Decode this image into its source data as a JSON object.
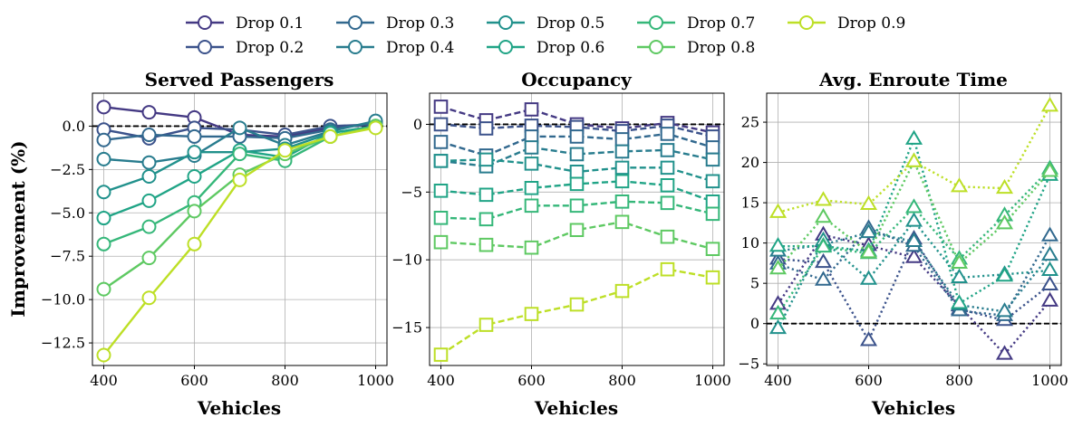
{
  "figure": {
    "ylabel": "Improvement (%)",
    "legend_placement": "top-center"
  },
  "series_styles": [
    {
      "name": "Drop 0.1",
      "color": "#443983"
    },
    {
      "name": "Drop 0.2",
      "color": "#3b528b"
    },
    {
      "name": "Drop 0.3",
      "color": "#31688e"
    },
    {
      "name": "Drop 0.4",
      "color": "#287c8e"
    },
    {
      "name": "Drop 0.5",
      "color": "#21918c"
    },
    {
      "name": "Drop 0.6",
      "color": "#20a486"
    },
    {
      "name": "Drop 0.7",
      "color": "#35b779"
    },
    {
      "name": "Drop 0.8",
      "color": "#5ec962"
    },
    {
      "name": "Drop 0.9",
      "color": "#bddf26"
    }
  ],
  "chart_data": [
    {
      "type": "line",
      "title": "Served Passengers",
      "xlabel": "Vehicles",
      "ylabel": "Improvement (%)",
      "x": [
        400,
        500,
        600,
        700,
        800,
        900,
        1000
      ],
      "xlim": [
        375,
        1025
      ],
      "ylim": [
        -13.8,
        1.9
      ],
      "xticks": [
        400,
        600,
        800,
        1000
      ],
      "yticks": [
        0.0,
        -2.5,
        -5.0,
        -7.5,
        -10.0,
        -12.5
      ],
      "ytick_labels": [
        "0.0",
        "−2.5",
        "−5.0",
        "−7.5",
        "−10.0",
        "−12.5"
      ],
      "grid": true,
      "baseline": 0,
      "marker": "circle",
      "line_style": "solid",
      "series": [
        {
          "name": "Drop 0.1",
          "values": [
            1.1,
            0.8,
            0.5,
            -0.5,
            -0.6,
            -0.1,
            0.1
          ]
        },
        {
          "name": "Drop 0.2",
          "values": [
            -0.2,
            -0.7,
            -0.1,
            -0.2,
            -0.5,
            0.0,
            0.1
          ]
        },
        {
          "name": "Drop 0.3",
          "values": [
            -0.8,
            -0.5,
            -0.6,
            -0.6,
            -0.7,
            -0.2,
            0.2
          ]
        },
        {
          "name": "Drop 0.4",
          "values": [
            -1.9,
            -2.1,
            -1.7,
            -0.1,
            -1.1,
            -0.3,
            0.3
          ]
        },
        {
          "name": "Drop 0.5",
          "values": [
            -3.8,
            -2.9,
            -1.5,
            -1.5,
            -1.3,
            -0.4,
            0.0
          ]
        },
        {
          "name": "Drop 0.6",
          "values": [
            -5.3,
            -4.3,
            -2.9,
            -1.4,
            -1.8,
            -0.4,
            0.0
          ]
        },
        {
          "name": "Drop 0.7",
          "values": [
            -6.8,
            -5.8,
            -4.4,
            -1.6,
            -2.0,
            -0.6,
            0.0
          ]
        },
        {
          "name": "Drop 0.8",
          "values": [
            -9.4,
            -7.6,
            -4.9,
            -2.8,
            -1.6,
            -0.6,
            0.0
          ]
        },
        {
          "name": "Drop 0.9",
          "values": [
            -13.2,
            -9.9,
            -6.8,
            -3.1,
            -1.4,
            -0.6,
            -0.1
          ]
        }
      ]
    },
    {
      "type": "line",
      "title": "Occupancy",
      "xlabel": "Vehicles",
      "ylabel": "",
      "x": [
        400,
        500,
        600,
        700,
        800,
        900,
        1000
      ],
      "xlim": [
        375,
        1025
      ],
      "ylim": [
        -17.8,
        2.3
      ],
      "xticks": [
        400,
        600,
        800,
        1000
      ],
      "yticks": [
        0,
        -5,
        -10,
        -15
      ],
      "ytick_labels": [
        "0",
        "−5",
        "−10",
        "−15"
      ],
      "grid": true,
      "baseline": 0,
      "marker": "square",
      "line_style": "dashed",
      "series": [
        {
          "name": "Drop 0.1",
          "values": [
            1.3,
            0.3,
            1.1,
            0.0,
            -0.3,
            0.1,
            -0.6
          ]
        },
        {
          "name": "Drop 0.2",
          "values": [
            0.0,
            -0.3,
            -0.1,
            -0.2,
            -0.5,
            -0.1,
            -0.9
          ]
        },
        {
          "name": "Drop 0.3",
          "values": [
            -1.3,
            -2.3,
            -0.9,
            -0.9,
            -1.1,
            -0.7,
            -1.7
          ]
        },
        {
          "name": "Drop 0.4",
          "values": [
            -2.7,
            -3.1,
            -1.7,
            -2.2,
            -2.0,
            -1.9,
            -2.6
          ]
        },
        {
          "name": "Drop 0.5",
          "values": [
            -2.7,
            -2.6,
            -2.9,
            -3.5,
            -3.2,
            -3.2,
            -4.2
          ]
        },
        {
          "name": "Drop 0.6",
          "values": [
            -4.9,
            -5.2,
            -4.7,
            -4.4,
            -4.2,
            -4.5,
            -5.7
          ]
        },
        {
          "name": "Drop 0.7",
          "values": [
            -6.9,
            -7.0,
            -6.0,
            -6.0,
            -5.7,
            -5.8,
            -6.6
          ]
        },
        {
          "name": "Drop 0.8",
          "values": [
            -8.7,
            -8.9,
            -9.1,
            -7.8,
            -7.2,
            -8.3,
            -9.2
          ]
        },
        {
          "name": "Drop 0.9",
          "values": [
            -17.0,
            -14.8,
            -14.0,
            -13.3,
            -12.3,
            -10.7,
            -11.3
          ]
        }
      ]
    },
    {
      "type": "line",
      "title": "Avg. Enroute Time",
      "xlabel": "Vehicles",
      "ylabel": "",
      "x": [
        400,
        500,
        600,
        700,
        800,
        900,
        1000
      ],
      "xlim": [
        375,
        1025
      ],
      "ylim": [
        -5.2,
        28.6
      ],
      "xticks": [
        400,
        600,
        800,
        1000
      ],
      "yticks": [
        25,
        20,
        15,
        10,
        5,
        0,
        -5
      ],
      "ytick_labels": [
        "25",
        "20",
        "15",
        "10",
        "5",
        "0",
        "−5"
      ],
      "grid": true,
      "baseline": 0,
      "marker": "triangle",
      "line_style": "dotted",
      "series": [
        {
          "name": "Drop 0.1",
          "values": [
            2.4,
            11.0,
            9.7,
            8.2,
            2.2,
            -3.8,
            2.8
          ]
        },
        {
          "name": "Drop 0.2",
          "values": [
            8.0,
            7.6,
            -2.1,
            10.5,
            1.8,
            0.4,
            4.8
          ]
        },
        {
          "name": "Drop 0.3",
          "values": [
            7.4,
            5.4,
            11.8,
            9.6,
            1.6,
            1.0,
            10.9
          ]
        },
        {
          "name": "Drop 0.4",
          "values": [
            9.0,
            9.8,
            11.3,
            10.2,
            2.3,
            1.5,
            8.5
          ]
        },
        {
          "name": "Drop 0.5",
          "values": [
            -0.6,
            10.3,
            5.5,
            12.7,
            5.7,
            6.1,
            6.6
          ]
        },
        {
          "name": "Drop 0.6",
          "values": [
            9.6,
            9.6,
            9.0,
            22.9,
            2.5,
            5.9,
            18.4
          ]
        },
        {
          "name": "Drop 0.7",
          "values": [
            1.2,
            9.5,
            8.7,
            14.4,
            8.0,
            13.4,
            19.2
          ]
        },
        {
          "name": "Drop 0.8",
          "values": [
            6.8,
            13.2,
            8.8,
            20.1,
            7.5,
            12.4,
            18.9
          ]
        },
        {
          "name": "Drop 0.9",
          "values": [
            13.8,
            15.3,
            14.8,
            20.1,
            17.0,
            16.8,
            27.0
          ]
        }
      ]
    }
  ]
}
